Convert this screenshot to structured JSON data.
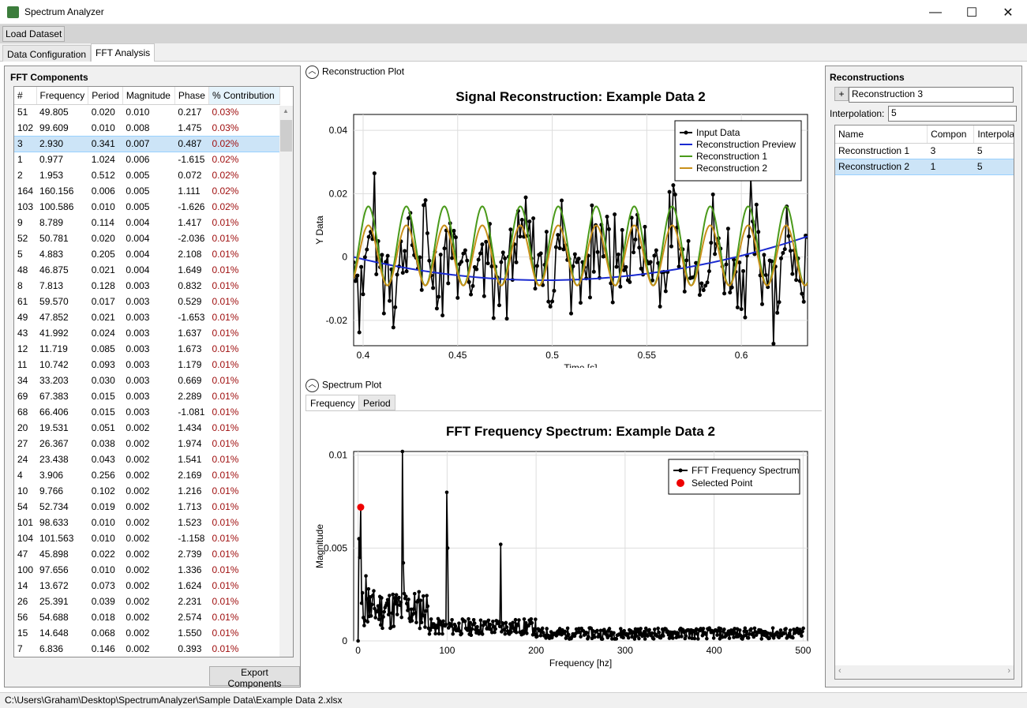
{
  "window": {
    "title": "Spectrum Analyzer",
    "minimize": "—",
    "maximize": "☐",
    "close": "✕"
  },
  "toolbar": {
    "load_label": "Load Dataset"
  },
  "tabs": [
    {
      "label": "Data Configuration"
    },
    {
      "label": "FFT Analysis"
    }
  ],
  "fft": {
    "title": "FFT Components",
    "columns": [
      "#",
      "Frequency",
      "Period",
      "Magnitude",
      "Phase",
      "% Contribution"
    ],
    "rows": [
      [
        "51",
        "49.805",
        "0.020",
        "0.010",
        "0.217",
        "0.03%"
      ],
      [
        "102",
        "99.609",
        "0.010",
        "0.008",
        "1.475",
        "0.03%"
      ],
      [
        "3",
        "2.930",
        "0.341",
        "0.007",
        "0.487",
        "0.02%"
      ],
      [
        "1",
        "0.977",
        "1.024",
        "0.006",
        "-1.615",
        "0.02%"
      ],
      [
        "2",
        "1.953",
        "0.512",
        "0.005",
        "0.072",
        "0.02%"
      ],
      [
        "164",
        "160.156",
        "0.006",
        "0.005",
        "1.111",
        "0.02%"
      ],
      [
        "103",
        "100.586",
        "0.010",
        "0.005",
        "-1.626",
        "0.02%"
      ],
      [
        "9",
        "8.789",
        "0.114",
        "0.004",
        "1.417",
        "0.01%"
      ],
      [
        "52",
        "50.781",
        "0.020",
        "0.004",
        "-2.036",
        "0.01%"
      ],
      [
        "5",
        "4.883",
        "0.205",
        "0.004",
        "2.108",
        "0.01%"
      ],
      [
        "48",
        "46.875",
        "0.021",
        "0.004",
        "1.649",
        "0.01%"
      ],
      [
        "8",
        "7.813",
        "0.128",
        "0.003",
        "0.832",
        "0.01%"
      ],
      [
        "61",
        "59.570",
        "0.017",
        "0.003",
        "0.529",
        "0.01%"
      ],
      [
        "49",
        "47.852",
        "0.021",
        "0.003",
        "-1.653",
        "0.01%"
      ],
      [
        "43",
        "41.992",
        "0.024",
        "0.003",
        "1.637",
        "0.01%"
      ],
      [
        "12",
        "11.719",
        "0.085",
        "0.003",
        "1.673",
        "0.01%"
      ],
      [
        "11",
        "10.742",
        "0.093",
        "0.003",
        "1.179",
        "0.01%"
      ],
      [
        "34",
        "33.203",
        "0.030",
        "0.003",
        "0.669",
        "0.01%"
      ],
      [
        "69",
        "67.383",
        "0.015",
        "0.003",
        "2.289",
        "0.01%"
      ],
      [
        "68",
        "66.406",
        "0.015",
        "0.003",
        "-1.081",
        "0.01%"
      ],
      [
        "20",
        "19.531",
        "0.051",
        "0.002",
        "1.434",
        "0.01%"
      ],
      [
        "27",
        "26.367",
        "0.038",
        "0.002",
        "1.974",
        "0.01%"
      ],
      [
        "24",
        "23.438",
        "0.043",
        "0.002",
        "1.541",
        "0.01%"
      ],
      [
        "4",
        "3.906",
        "0.256",
        "0.002",
        "2.169",
        "0.01%"
      ],
      [
        "10",
        "9.766",
        "0.102",
        "0.002",
        "1.216",
        "0.01%"
      ],
      [
        "54",
        "52.734",
        "0.019",
        "0.002",
        "1.713",
        "0.01%"
      ],
      [
        "101",
        "98.633",
        "0.010",
        "0.002",
        "1.523",
        "0.01%"
      ],
      [
        "104",
        "101.563",
        "0.010",
        "0.002",
        "-1.158",
        "0.01%"
      ],
      [
        "47",
        "45.898",
        "0.022",
        "0.002",
        "2.739",
        "0.01%"
      ],
      [
        "100",
        "97.656",
        "0.010",
        "0.002",
        "1.336",
        "0.01%"
      ],
      [
        "14",
        "13.672",
        "0.073",
        "0.002",
        "1.624",
        "0.01%"
      ],
      [
        "26",
        "25.391",
        "0.039",
        "0.002",
        "2.231",
        "0.01%"
      ],
      [
        "56",
        "54.688",
        "0.018",
        "0.002",
        "2.574",
        "0.01%"
      ],
      [
        "15",
        "14.648",
        "0.068",
        "0.002",
        "1.550",
        "0.01%"
      ],
      [
        "7",
        "6.836",
        "0.146",
        "0.002",
        "0.393",
        "0.01%"
      ]
    ],
    "export_label": "Export Components"
  },
  "recon_plot": {
    "expander": "Reconstruction Plot"
  },
  "spectrum_plot": {
    "expander": "Spectrum Plot",
    "tabs": [
      "Frequency",
      "Period"
    ]
  },
  "reconstructions": {
    "title": "Reconstructions",
    "add_symbol": "+",
    "name_value": "Reconstruction 3",
    "interp_label": "Interpolation:",
    "interp_value": "5",
    "columns": [
      "Name",
      "Compon",
      "Interpola"
    ],
    "rows": [
      [
        "Reconstruction 1",
        "3",
        "5"
      ],
      [
        "Reconstruction 2",
        "1",
        "5"
      ]
    ]
  },
  "status": {
    "path": "C:\\Users\\Graham\\Desktop\\SpectrumAnalyzer\\Sample Data\\Example Data 2.xlsx"
  },
  "chart_data": [
    {
      "type": "line",
      "title": "Signal Reconstruction: Example Data 2",
      "xlabel": "Time [s]",
      "ylabel": "Y Data",
      "xlim": [
        0.395,
        0.635
      ],
      "ylim": [
        -0.028,
        0.045
      ],
      "xticks": [
        "0.4",
        "0.45",
        "0.5",
        "0.55",
        "0.6"
      ],
      "yticks": [
        "-0.02",
        "0",
        "0.02",
        "0.04"
      ],
      "legend": [
        "Input Data",
        "Reconstruction Preview",
        "Reconstruction 1",
        "Reconstruction 2"
      ],
      "colors": {
        "input": "#000000",
        "preview": "#1a2ad0",
        "recon1": "#4a9a1a",
        "recon2": "#c8901a"
      },
      "series": [
        {
          "name": "Reconstruction Preview",
          "type": "quadratic",
          "x": [
            0.395,
            0.49,
            0.635
          ],
          "y": [
            0.0,
            -0.0073,
            0.0065
          ]
        },
        {
          "name": "Reconstruction 1",
          "type": "sine",
          "freq_hz": 49.8,
          "amp": 0.0125,
          "offset": 0.0035
        },
        {
          "name": "Reconstruction 2",
          "type": "sine",
          "freq_hz": 49.8,
          "amp": 0.0095,
          "offset": 0.0005
        }
      ]
    },
    {
      "type": "line",
      "title": "FFT Frequency Spectrum: Example Data 2",
      "xlabel": "Frequency [hz]",
      "ylabel": "Magnitude",
      "xlim": [
        -5,
        505
      ],
      "ylim": [
        0,
        0.0102
      ],
      "xticks": [
        "0",
        "100",
        "200",
        "300",
        "400",
        "500"
      ],
      "yticks": [
        "0",
        "0.005",
        "0.01"
      ],
      "legend": [
        "FFT Frequency Spectrum",
        "Selected Point"
      ],
      "peaks": [
        [
          0,
          0.0
        ],
        [
          0.977,
          0.0055
        ],
        [
          1.953,
          0.0045
        ],
        [
          2.93,
          0.0072
        ],
        [
          8.789,
          0.0035
        ],
        [
          11.719,
          0.0028
        ],
        [
          49.805,
          0.0102
        ],
        [
          50.781,
          0.0042
        ],
        [
          99.609,
          0.008
        ],
        [
          100.586,
          0.005
        ],
        [
          160.156,
          0.0052
        ]
      ],
      "selected_point": [
        2.93,
        0.0072
      ]
    }
  ]
}
